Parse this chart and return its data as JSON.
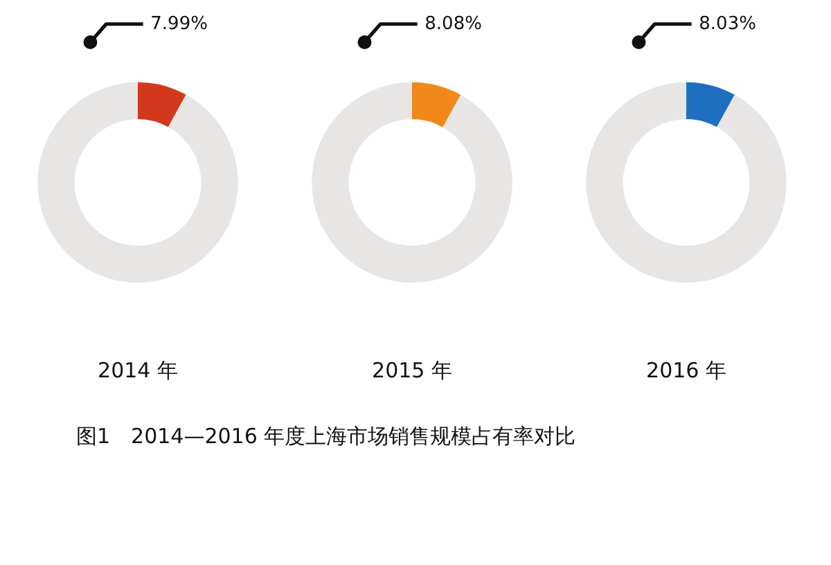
{
  "chart_data": [
    {
      "type": "donut",
      "title": "2014 年",
      "categories": [
        null,
        null
      ],
      "values": [
        7.99,
        92.01
      ],
      "colors": [
        "#d2381c",
        "#e8e6e4"
      ],
      "value_labels": [
        "7.99%",
        null
      ],
      "annotations": [
        "图1　2014—2016 年度上海市场销售规模占有率对比"
      ]
    },
    {
      "type": "donut",
      "title": "2015 年",
      "categories": [
        null,
        null
      ],
      "values": [
        8.08,
        91.92
      ],
      "colors": [
        "#f0881a",
        "#e8e6e4"
      ],
      "value_labels": [
        "8.08%",
        null
      ]
    },
    {
      "type": "donut",
      "title": "2016 年",
      "categories": [
        null,
        null
      ],
      "values": [
        8.03,
        91.97
      ],
      "colors": [
        "#1f6fc0",
        "#e8e6e4"
      ],
      "value_labels": [
        "8.03%",
        null
      ]
    }
  ]
}
